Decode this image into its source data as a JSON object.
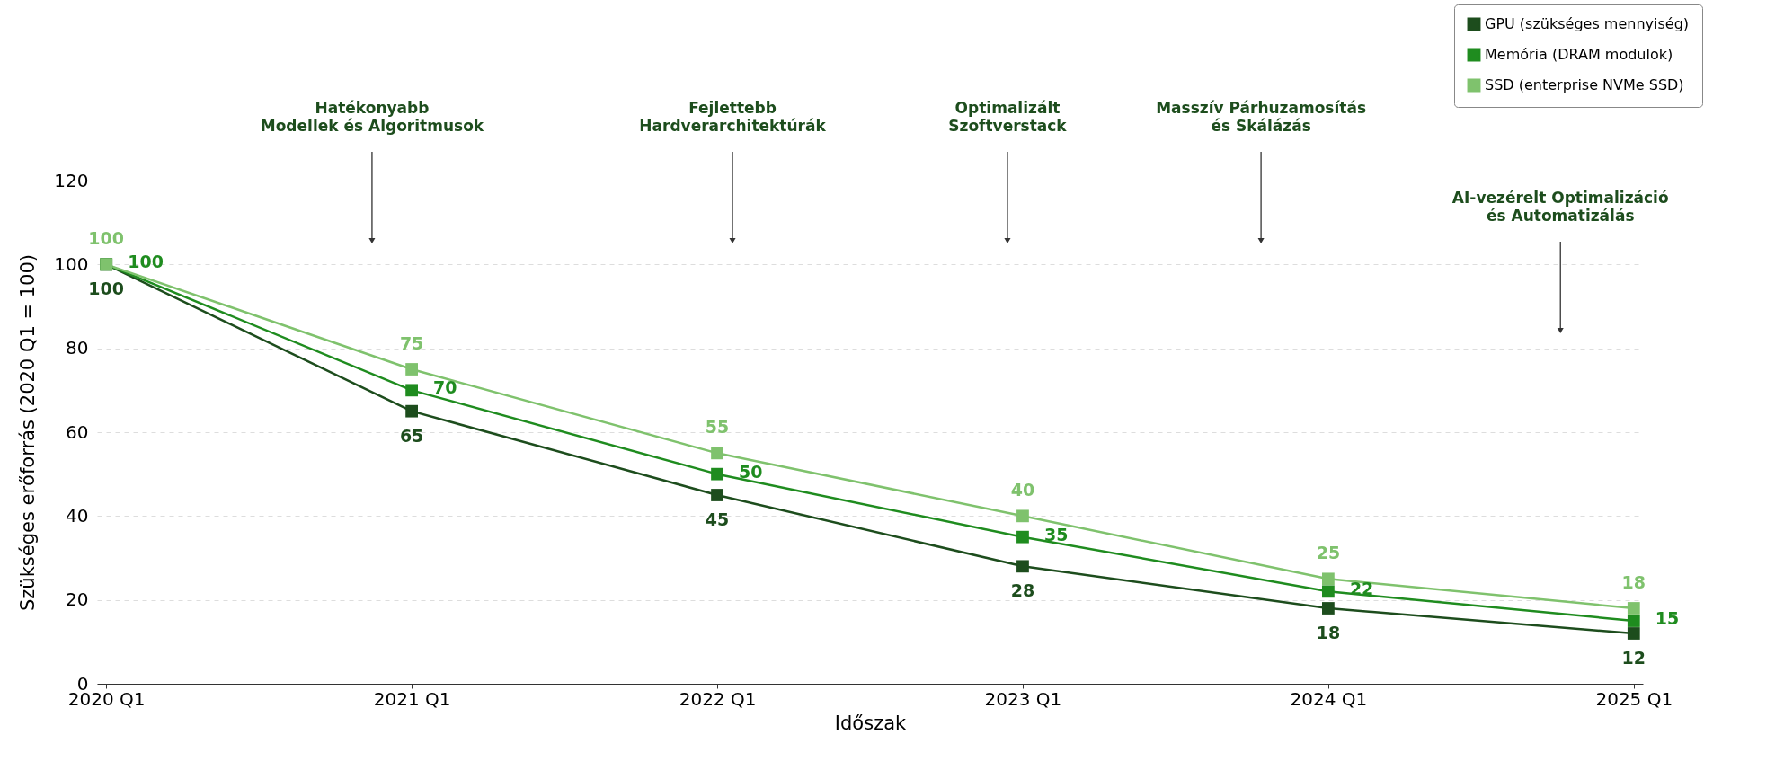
{
  "chart_data": {
    "type": "line",
    "xlabel": "Időszak",
    "ylabel": "Szükséges erőforrás (2020 Q1 = 100)",
    "categories": [
      "2020 Q1",
      "2021 Q1",
      "2022 Q1",
      "2023 Q1",
      "2024 Q1",
      "2025 Q1"
    ],
    "series": [
      {
        "name": "GPU (szükséges mennyiség)",
        "color": "#1d4d1d",
        "values": [
          100,
          65,
          45,
          28,
          18,
          12
        ]
      },
      {
        "name": "Memória (DRAM modulok)",
        "color": "#1f8c1f",
        "values": [
          100,
          70,
          50,
          35,
          22,
          15
        ]
      },
      {
        "name": "SSD (enterprise NVMe SSD)",
        "color": "#7fc26d",
        "values": [
          100,
          75,
          55,
          40,
          25,
          18
        ]
      }
    ],
    "ylim": [
      0,
      120
    ],
    "yticks": [
      0,
      20,
      40,
      60,
      80,
      100,
      120
    ],
    "grid": "y",
    "legend": "top right",
    "marker": "square",
    "line_style": "solid",
    "data_labels": true,
    "annotations": [
      "Hatékonyabb\nModellek és Algoritmusok",
      "Fejlettebb\nHardverarchitektúrák",
      "Optimalizált\nSzoftverstack",
      "Masszív Párhuzamosítás\nés Skálázás",
      "AI-vezérelt Optimalizáció\nés Automatizálás"
    ]
  }
}
